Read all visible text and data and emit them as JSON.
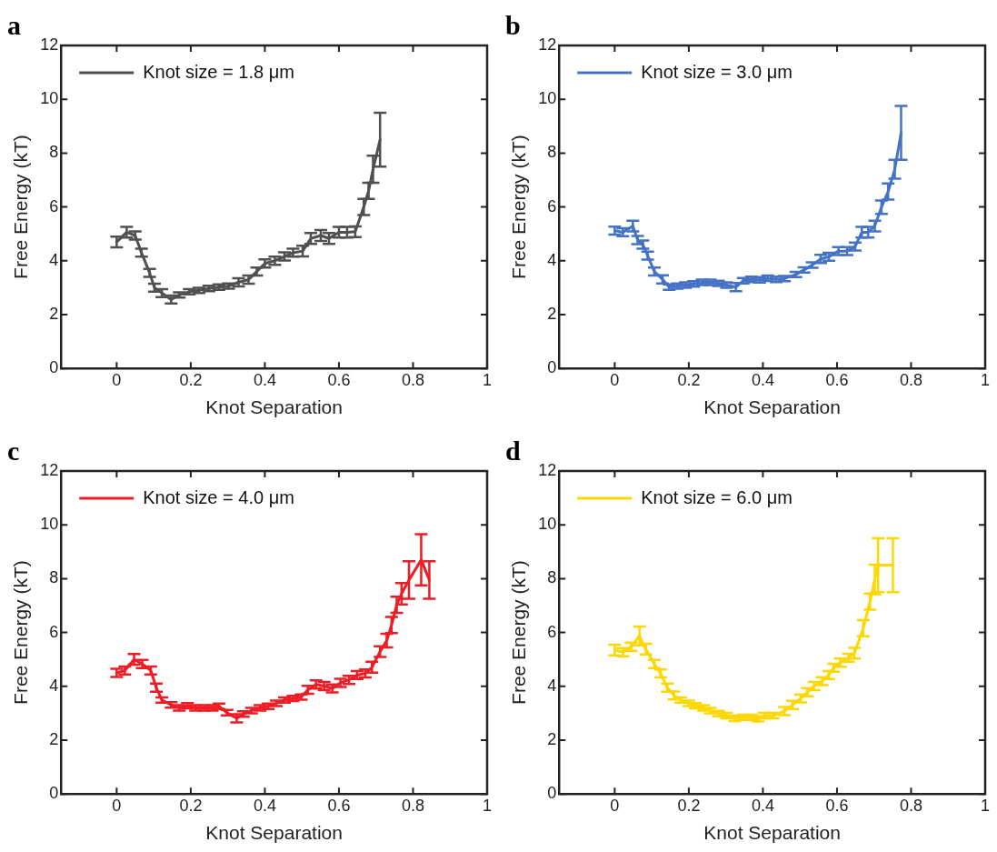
{
  "chart_data": [
    {
      "type": "line",
      "title": "a",
      "xlabel": "Knot Separation",
      "ylabel": "Free Energy (kT)",
      "xlim": [
        -0.15,
        1
      ],
      "xticks": [
        0,
        0.2,
        0.4,
        0.6,
        0.8,
        1
      ],
      "ylim": [
        0,
        12
      ],
      "yticks": [
        0,
        2,
        4,
        6,
        8,
        10,
        12
      ],
      "grid": false,
      "legend": "top left",
      "line_style": "solid",
      "series": [
        {
          "name": "Knot size = 1.8 μm",
          "color": "#505050",
          "x": [
            0,
            0.027,
            0.05,
            0.067,
            0.089,
            0.102,
            0.122,
            0.147,
            0.169,
            0.196,
            0.222,
            0.249,
            0.276,
            0.302,
            0.329,
            0.356,
            0.378,
            0.4,
            0.427,
            0.453,
            0.476,
            0.502,
            0.524,
            0.551,
            0.573,
            0.6,
            0.622,
            0.644,
            0.667,
            0.68,
            0.692,
            0.711
          ],
          "values": [
            4.7,
            5.06,
            4.94,
            4.3,
            3.55,
            3.0,
            2.8,
            2.56,
            2.73,
            2.85,
            2.9,
            2.97,
            3.02,
            3.06,
            3.2,
            3.3,
            3.6,
            3.9,
            4.0,
            4.16,
            4.3,
            4.36,
            4.83,
            4.94,
            4.83,
            5.06,
            5.06,
            5.08,
            6.0,
            6.6,
            7.4,
            8.5
          ],
          "errors": [
            0.2,
            0.2,
            0.15,
            0.15,
            0.15,
            0.15,
            0.15,
            0.15,
            0.1,
            0.1,
            0.1,
            0.1,
            0.1,
            0.1,
            0.15,
            0.15,
            0.15,
            0.15,
            0.15,
            0.15,
            0.15,
            0.2,
            0.2,
            0.2,
            0.2,
            0.2,
            0.2,
            0.2,
            0.3,
            0.3,
            0.5,
            1.0
          ]
        }
      ]
    },
    {
      "type": "line",
      "title": "b",
      "xlabel": "Knot Separation",
      "ylabel": "Free Energy (kT)",
      "xlim": [
        -0.15,
        1
      ],
      "xticks": [
        0,
        0.2,
        0.4,
        0.6,
        0.8,
        1
      ],
      "ylim": [
        0,
        12
      ],
      "yticks": [
        0,
        2,
        4,
        6,
        8,
        10,
        12
      ],
      "grid": false,
      "legend": "top left",
      "line_style": "solid",
      "series": [
        {
          "name": "Knot size = 3.0 μm",
          "color": "#4472c4",
          "x": [
            0,
            0.022,
            0.049,
            0.062,
            0.076,
            0.089,
            0.107,
            0.129,
            0.147,
            0.169,
            0.191,
            0.213,
            0.236,
            0.258,
            0.28,
            0.302,
            0.327,
            0.347,
            0.369,
            0.391,
            0.413,
            0.436,
            0.458,
            0.489,
            0.511,
            0.533,
            0.556,
            0.578,
            0.604,
            0.627,
            0.649,
            0.667,
            0.684,
            0.702,
            0.72,
            0.738,
            0.756,
            0.773
          ],
          "values": [
            5.12,
            5.06,
            5.29,
            4.77,
            4.6,
            4.19,
            3.6,
            3.31,
            3.02,
            3.06,
            3.1,
            3.14,
            3.2,
            3.2,
            3.16,
            3.1,
            3.02,
            3.26,
            3.31,
            3.29,
            3.35,
            3.31,
            3.34,
            3.49,
            3.66,
            3.84,
            4.07,
            4.15,
            4.36,
            4.36,
            4.53,
            5.06,
            5.06,
            5.29,
            5.99,
            6.57,
            7.4,
            8.75
          ],
          "errors": [
            0.15,
            0.15,
            0.2,
            0.15,
            0.15,
            0.15,
            0.15,
            0.15,
            0.1,
            0.1,
            0.1,
            0.1,
            0.1,
            0.1,
            0.1,
            0.1,
            0.15,
            0.1,
            0.1,
            0.1,
            0.1,
            0.1,
            0.1,
            0.1,
            0.1,
            0.1,
            0.15,
            0.15,
            0.15,
            0.15,
            0.15,
            0.2,
            0.2,
            0.2,
            0.25,
            0.3,
            0.35,
            1.0
          ]
        }
      ]
    },
    {
      "type": "line",
      "title": "c",
      "xlabel": "Knot Separation",
      "ylabel": "Free Energy (kT)",
      "xlim": [
        -0.15,
        1
      ],
      "xticks": [
        0,
        0.2,
        0.4,
        0.6,
        0.8,
        1
      ],
      "ylim": [
        0,
        12
      ],
      "yticks": [
        0,
        2,
        4,
        6,
        8,
        10,
        12
      ],
      "grid": false,
      "legend": "top left",
      "line_style": "solid",
      "series": [
        {
          "name": "Knot size = 4.0 μm",
          "color": "#ee1c25",
          "x": [
            0,
            0.022,
            0.047,
            0.069,
            0.092,
            0.107,
            0.122,
            0.147,
            0.169,
            0.191,
            0.213,
            0.236,
            0.258,
            0.276,
            0.298,
            0.324,
            0.342,
            0.364,
            0.387,
            0.409,
            0.431,
            0.453,
            0.476,
            0.498,
            0.516,
            0.538,
            0.56,
            0.582,
            0.604,
            0.627,
            0.649,
            0.671,
            0.689,
            0.711,
            0.729,
            0.742,
            0.756,
            0.769,
            0.789,
            0.822,
            0.844
          ],
          "values": [
            4.5,
            4.59,
            5.0,
            4.83,
            4.59,
            3.95,
            3.49,
            3.31,
            3.2,
            3.28,
            3.2,
            3.2,
            3.2,
            3.26,
            3.02,
            2.81,
            2.97,
            3.1,
            3.2,
            3.26,
            3.37,
            3.49,
            3.55,
            3.6,
            3.87,
            4.07,
            4.01,
            3.92,
            4.13,
            4.24,
            4.42,
            4.48,
            4.71,
            5.29,
            5.7,
            6.28,
            7.03,
            7.44,
            7.95,
            8.7,
            7.95
          ],
          "errors": [
            0.15,
            0.15,
            0.2,
            0.15,
            0.15,
            0.15,
            0.1,
            0.1,
            0.1,
            0.1,
            0.1,
            0.1,
            0.1,
            0.1,
            0.1,
            0.15,
            0.1,
            0.1,
            0.1,
            0.1,
            0.1,
            0.1,
            0.1,
            0.1,
            0.15,
            0.15,
            0.15,
            0.15,
            0.15,
            0.15,
            0.15,
            0.15,
            0.2,
            0.2,
            0.25,
            0.3,
            0.3,
            0.4,
            0.7,
            0.95,
            0.7
          ]
        }
      ]
    },
    {
      "type": "line",
      "title": "d",
      "xlabel": "Knot Separation",
      "ylabel": "Free Energy (kT)",
      "xlim": [
        -0.15,
        1
      ],
      "xticks": [
        0,
        0.2,
        0.4,
        0.6,
        0.8,
        1
      ],
      "ylim": [
        0,
        12
      ],
      "yticks": [
        0,
        2,
        4,
        6,
        8,
        10,
        12
      ],
      "grid": false,
      "legend": "top left",
      "line_style": "solid",
      "series": [
        {
          "name": "Knot size = 6.0 μm",
          "color": "#ffd700",
          "x": [
            0,
            0.022,
            0.044,
            0.067,
            0.084,
            0.107,
            0.124,
            0.142,
            0.16,
            0.178,
            0.2,
            0.218,
            0.24,
            0.258,
            0.28,
            0.302,
            0.324,
            0.347,
            0.369,
            0.387,
            0.404,
            0.427,
            0.458,
            0.48,
            0.502,
            0.52,
            0.538,
            0.56,
            0.578,
            0.591,
            0.609,
            0.631,
            0.647,
            0.671,
            0.689,
            0.702,
            0.711,
            0.751
          ],
          "values": [
            5.35,
            5.27,
            5.47,
            5.87,
            5.38,
            4.83,
            4.48,
            3.95,
            3.66,
            3.49,
            3.37,
            3.28,
            3.2,
            3.1,
            2.99,
            2.91,
            2.81,
            2.85,
            2.85,
            2.79,
            2.91,
            2.91,
            3.08,
            3.31,
            3.55,
            3.78,
            4.01,
            4.19,
            4.42,
            4.69,
            4.88,
            5.06,
            5.23,
            6.16,
            7.15,
            7.97,
            8.5,
            8.5
          ],
          "errors": [
            0.2,
            0.15,
            0.15,
            0.35,
            0.2,
            0.15,
            0.15,
            0.15,
            0.15,
            0.1,
            0.1,
            0.1,
            0.1,
            0.1,
            0.1,
            0.1,
            0.1,
            0.1,
            0.1,
            0.1,
            0.1,
            0.1,
            0.15,
            0.15,
            0.15,
            0.15,
            0.15,
            0.15,
            0.15,
            0.15,
            0.15,
            0.15,
            0.2,
            0.3,
            0.3,
            0.55,
            1.0,
            1.0
          ]
        }
      ]
    }
  ]
}
